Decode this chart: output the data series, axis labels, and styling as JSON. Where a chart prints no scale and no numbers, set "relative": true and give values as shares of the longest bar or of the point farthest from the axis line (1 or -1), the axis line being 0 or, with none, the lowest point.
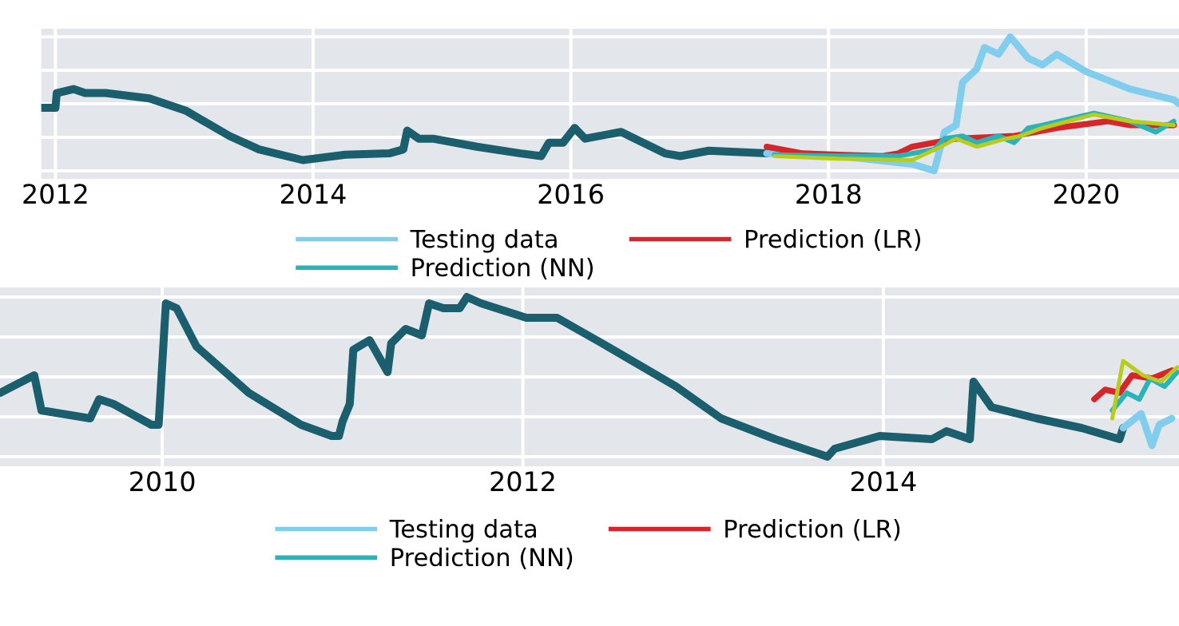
{
  "chart_data": [
    {
      "type": "line",
      "relative": true,
      "grid": true,
      "legend": "bottom",
      "xlim": [
        2011.89,
        2020.72
      ],
      "xticks": [
        2012,
        2014,
        2016,
        2018,
        2020
      ],
      "series": [
        {
          "color": "#1b5e6e",
          "x": [
            2011.89,
            2012.0,
            2012.01,
            2012.14,
            2012.23,
            2012.39,
            2012.73,
            2013.01,
            2013.35,
            2013.58,
            2013.92,
            2014.25,
            2014.59,
            2014.7,
            2014.73,
            2014.82,
            2014.93,
            2015.27,
            2015.61,
            2015.77,
            2015.83,
            2015.94,
            2016.03,
            2016.11,
            2016.39,
            2016.73,
            2016.85,
            2017.07,
            2017.52
          ],
          "values": [
            0.47,
            0.47,
            0.58,
            0.61,
            0.58,
            0.58,
            0.54,
            0.45,
            0.26,
            0.16,
            0.08,
            0.12,
            0.13,
            0.16,
            0.3,
            0.24,
            0.24,
            0.18,
            0.13,
            0.11,
            0.21,
            0.21,
            0.32,
            0.24,
            0.29,
            0.13,
            0.11,
            0.15,
            0.13
          ]
        },
        {
          "name": "Testing data",
          "color": "#80cdee",
          "x": [
            2017.52,
            2018.08,
            2018.65,
            2018.82,
            2018.9,
            2018.99,
            2019.04,
            2019.15,
            2019.21,
            2019.32,
            2019.41,
            2019.55,
            2019.66,
            2019.77,
            2020.0,
            2020.34,
            2020.68,
            2020.72
          ],
          "values": [
            0.13,
            0.11,
            0.05,
            0,
            0.29,
            0.34,
            0.66,
            0.76,
            0.92,
            0.87,
            1.0,
            0.84,
            0.79,
            0.87,
            0.74,
            0.61,
            0.53,
            0.5
          ]
        },
        {
          "name": "Prediction (LR)",
          "color": "#d7262b",
          "x": [
            2017.52,
            2017.8,
            2018.08,
            2018.42,
            2018.54,
            2018.65,
            2018.82,
            2018.99,
            2019.44,
            2019.77,
            2020.17,
            2020.34,
            2020.68
          ],
          "values": [
            0.18,
            0.13,
            0.12,
            0.11,
            0.13,
            0.18,
            0.21,
            0.24,
            0.26,
            0.32,
            0.37,
            0.34,
            0.34
          ]
        },
        {
          "name": "Prediction (NN)",
          "color": "#2bb3b8",
          "x": [
            2017.58,
            2018.08,
            2018.54,
            2018.82,
            2018.9,
            2019.04,
            2019.15,
            2019.32,
            2019.44,
            2019.55,
            2019.66,
            2020.06,
            2020.34,
            2020.54,
            2020.68
          ],
          "values": [
            0.12,
            0.11,
            0.11,
            0.16,
            0.24,
            0.26,
            0.21,
            0.26,
            0.21,
            0.32,
            0.34,
            0.43,
            0.37,
            0.29,
            0.37
          ]
        },
        {
          "color": "#b8cc1e",
          "x": [
            2017.58,
            2018.08,
            2018.65,
            2018.87,
            2018.99,
            2019.15,
            2019.38,
            2019.49,
            2019.66,
            2020.06,
            2020.34,
            2020.68
          ],
          "values": [
            0.11,
            0.09,
            0.08,
            0.18,
            0.24,
            0.18,
            0.24,
            0.26,
            0.32,
            0.42,
            0.37,
            0.34
          ]
        }
      ]
    },
    {
      "type": "line",
      "relative": true,
      "grid": true,
      "legend": "bottom",
      "xlim": [
        2009.1,
        2015.64
      ],
      "xticks": [
        2010,
        2012,
        2014
      ],
      "series": [
        {
          "color": "#1b5e6e",
          "x": [
            2009.1,
            2009.29,
            2009.33,
            2009.6,
            2009.65,
            2009.73,
            2009.94,
            2009.98,
            2010.02,
            2010.08,
            2010.19,
            2010.48,
            2010.77,
            2010.94,
            2010.98,
            2011.0,
            2011.04,
            2011.06,
            2011.15,
            2011.25,
            2011.27,
            2011.35,
            2011.44,
            2011.48,
            2011.56,
            2011.65,
            2011.69,
            2011.77,
            2012.02,
            2012.19,
            2012.44,
            2012.85,
            2013.1,
            2013.4,
            2013.69,
            2013.73,
            2013.98,
            2014.27,
            2014.35,
            2014.48,
            2014.5,
            2014.6,
            2014.85,
            2015.1,
            2015.31,
            2015.33
          ],
          "values": [
            0.4,
            0.51,
            0.29,
            0.24,
            0.36,
            0.33,
            0.2,
            0.2,
            0.96,
            0.93,
            0.69,
            0.4,
            0.2,
            0.13,
            0.13,
            0.22,
            0.33,
            0.67,
            0.73,
            0.53,
            0.71,
            0.8,
            0.76,
            0.96,
            0.93,
            0.93,
            1.0,
            0.96,
            0.87,
            0.87,
            0.71,
            0.44,
            0.24,
            0.11,
            0,
            0.05,
            0.13,
            0.11,
            0.16,
            0.11,
            0.47,
            0.31,
            0.24,
            0.18,
            0.11,
            0.18
          ]
        },
        {
          "name": "Testing data",
          "color": "#80cdee",
          "x": [
            2015.33,
            2015.43,
            2015.49,
            2015.53,
            2015.6
          ],
          "values": [
            0.18,
            0.27,
            0.07,
            0.2,
            0.24
          ]
        },
        {
          "name": "Prediction (LR)",
          "color": "#d7262b",
          "x": [
            2015.17,
            2015.23,
            2015.31,
            2015.38,
            2015.49,
            2015.6
          ],
          "values": [
            0.36,
            0.42,
            0.4,
            0.51,
            0.49,
            0.54
          ]
        },
        {
          "name": "Prediction (NN)",
          "color": "#2bb3b8",
          "x": [
            2015.27,
            2015.35,
            2015.42,
            2015.48,
            2015.56,
            2015.63
          ],
          "values": [
            0.29,
            0.4,
            0.36,
            0.49,
            0.44,
            0.53
          ]
        },
        {
          "color": "#b8cc1e",
          "x": [
            2015.27,
            2015.33,
            2015.44,
            2015.54,
            2015.63
          ],
          "values": [
            0.24,
            0.6,
            0.51,
            0.47,
            0.56
          ]
        }
      ]
    }
  ]
}
